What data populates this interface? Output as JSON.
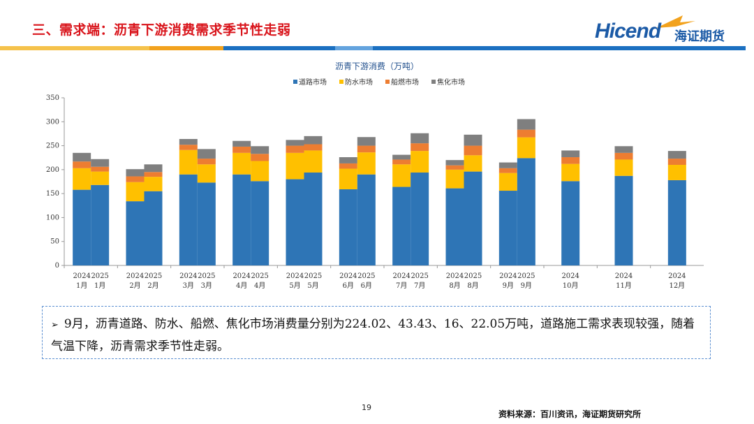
{
  "header": {
    "title": "三、需求端：沥青下游消费需求季节性走弱",
    "logo_en": "Hicend",
    "logo_cn": "海证期货"
  },
  "colors": {
    "title_red": "#d9141b",
    "band_yellow": "#f5c24b",
    "band_orange": "#f2a21d",
    "band_blue": "#1b70c1",
    "band_lightblue": "#63a3de",
    "road": "#2e75b6",
    "waterproof": "#ffc000",
    "marine": "#ed7d31",
    "coking": "#7f7f7f"
  },
  "chart_data": {
    "type": "bar",
    "stacked": true,
    "title": "沥青下游消费（万吨）",
    "ylim": [
      0,
      350
    ],
    "yticks": [
      0,
      50,
      100,
      150,
      200,
      250,
      300,
      350
    ],
    "legend_position": "top",
    "grid": false,
    "categories": [
      "2024 1月",
      "2025 1月",
      "2024 2月",
      "2025 2月",
      "2024 3月",
      "2025 3月",
      "2024 4月",
      "2025 4月",
      "2024 5月",
      "2025 5月",
      "2024 6月",
      "2025 6月",
      "2024 7月",
      "2025 7月",
      "2024 8月",
      "2025 8月",
      "2024 9月",
      "2025 9月",
      "2024 10月",
      "2024 11月",
      "2024 12月"
    ],
    "groups": [
      {
        "month": "1月",
        "bars": [
          {
            "year": "2024",
            "i": 0
          },
          {
            "year": "2025",
            "i": 1
          }
        ]
      },
      {
        "month": "2月",
        "bars": [
          {
            "year": "2024",
            "i": 2
          },
          {
            "year": "2025",
            "i": 3
          }
        ]
      },
      {
        "month": "3月",
        "bars": [
          {
            "year": "2024",
            "i": 4
          },
          {
            "year": "2025",
            "i": 5
          }
        ]
      },
      {
        "month": "4月",
        "bars": [
          {
            "year": "2024",
            "i": 6
          },
          {
            "year": "2025",
            "i": 7
          }
        ]
      },
      {
        "month": "5月",
        "bars": [
          {
            "year": "2024",
            "i": 8
          },
          {
            "year": "2025",
            "i": 9
          }
        ]
      },
      {
        "month": "6月",
        "bars": [
          {
            "year": "2024",
            "i": 10
          },
          {
            "year": "2025",
            "i": 11
          }
        ]
      },
      {
        "month": "7月",
        "bars": [
          {
            "year": "2024",
            "i": 12
          },
          {
            "year": "2025",
            "i": 13
          }
        ]
      },
      {
        "month": "8月",
        "bars": [
          {
            "year": "2024",
            "i": 14
          },
          {
            "year": "2025",
            "i": 15
          }
        ]
      },
      {
        "month": "9月",
        "bars": [
          {
            "year": "2024",
            "i": 16
          },
          {
            "year": "2025",
            "i": 17
          }
        ]
      },
      {
        "month": "10月",
        "bars": [
          {
            "year": "2024",
            "i": 18
          }
        ]
      },
      {
        "month": "11月",
        "bars": [
          {
            "year": "2024",
            "i": 19
          }
        ]
      },
      {
        "month": "12月",
        "bars": [
          {
            "year": "2024",
            "i": 20
          }
        ]
      }
    ],
    "series": [
      {
        "name": "道路市场",
        "color": "#2e75b6",
        "values": [
          158,
          168,
          134,
          155,
          190,
          173,
          190,
          176,
          180,
          194,
          159,
          190,
          164,
          194,
          161,
          196,
          156,
          224.02,
          176,
          187,
          178
        ]
      },
      {
        "name": "防水市场",
        "color": "#ffc000",
        "values": [
          45,
          28,
          40,
          30,
          51,
          38,
          45,
          42,
          55,
          46,
          43,
          46,
          47,
          45,
          39,
          34,
          37,
          43.43,
          36,
          34,
          32
        ]
      },
      {
        "name": "船燃市场",
        "color": "#ed7d31",
        "values": [
          14,
          10,
          12,
          10,
          11,
          12,
          13,
          15,
          15,
          13,
          11,
          14,
          10,
          16,
          9,
          20,
          10,
          16,
          14,
          14,
          13
        ]
      },
      {
        "name": "焦化市场",
        "color": "#7f7f7f",
        "values": [
          18,
          16,
          15,
          16,
          12,
          20,
          12,
          16,
          12,
          17,
          13,
          18,
          10,
          21,
          11,
          23,
          12,
          22.05,
          14,
          14,
          16
        ]
      }
    ]
  },
  "note": {
    "bullet": "➢",
    "text": "9月，沥青道路、防水、船燃、焦化市场消费量分别为224.02、43.43、16、22.05万吨，道路施工需求表现较强，随着气温下降，沥青需求季节性走弱。"
  },
  "footer": {
    "page_number": "19",
    "source": "资料来源：百川资讯，海证期货研究所"
  }
}
